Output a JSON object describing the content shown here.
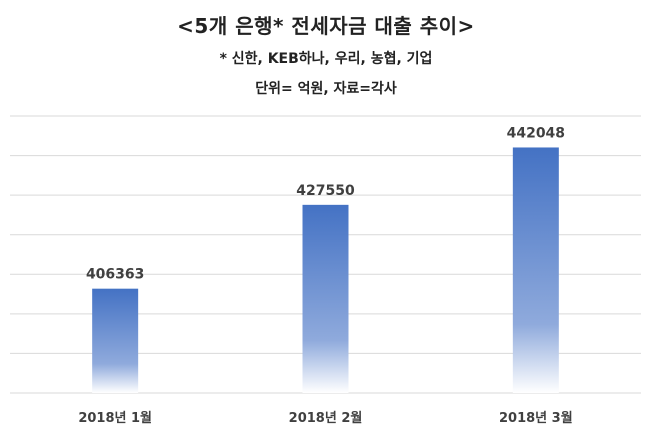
{
  "chart_data": {
    "type": "bar",
    "title": "<5개 은행* 전세자금 대출 추이>",
    "subtitle_lines": [
      "* 신한, KEB하나, 우리, 농협, 기업",
      "단위= 억원, 자료=각사"
    ],
    "categories": [
      "2018년 1월",
      "2018년 2월",
      "2018년 3월"
    ],
    "values": [
      406363,
      427550,
      442048
    ],
    "data_labels": [
      "406363",
      "427550",
      "442048"
    ],
    "xlabel": "",
    "ylabel": "",
    "ylim": [
      380000,
      450000
    ],
    "grid": true,
    "legend": "none",
    "colors": {
      "bar_top": "#4472c4",
      "bar_mid": "#8faadc",
      "bar_bottom": "#ffffff",
      "grid": "#d9d9d9",
      "text": "#404040",
      "title": "#222222"
    }
  }
}
